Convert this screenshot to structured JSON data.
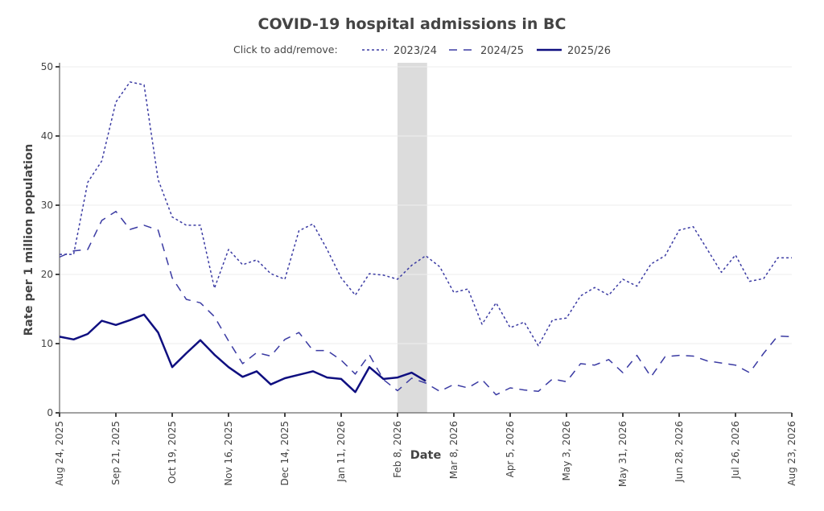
{
  "chart_data": {
    "type": "line",
    "title": "COVID-19 hospital admissions in BC",
    "xlabel": "Date",
    "ylabel": "Rate per 1 million population",
    "ylim": [
      0,
      50
    ],
    "yticks": [
      0,
      10,
      20,
      30,
      40,
      50
    ],
    "x_weeks": 53,
    "x_start": "Aug 24, 2025",
    "x_end": "Aug 23, 2026",
    "xtick_labels": [
      "Aug 24, 2025",
      "Sep 21, 2025",
      "Oct 19, 2025",
      "Nov 16, 2025",
      "Dec 14, 2025",
      "Jan 11, 2026",
      "Feb 8, 2026",
      "Mar 8, 2026",
      "Apr 5, 2026",
      "May 3, 2026",
      "May 31, 2026",
      "Jun 28, 2026",
      "Jul 26, 2026",
      "Aug 23, 2026"
    ],
    "xtick_weeks": [
      0,
      4,
      8,
      12,
      16,
      20,
      24,
      28,
      32,
      36,
      40,
      44,
      48,
      52
    ],
    "grid": true,
    "highlight_band": {
      "from_week": 24,
      "to_week": 26.1,
      "color": "#dcdcdc"
    },
    "legend": {
      "prefix": "Click to add/remove:",
      "placement": "top-center"
    },
    "series": [
      {
        "name": "2023/24",
        "style": "dotted",
        "color": "#3b3ba3",
        "values": [
          22.9,
          22.9,
          33.3,
          36.4,
          44.9,
          47.8,
          47.4,
          33.7,
          28.3,
          27.1,
          27.1,
          18.0,
          23.6,
          21.4,
          22.1,
          20.1,
          19.3,
          26.3,
          27.3,
          23.6,
          19.5,
          17.0,
          20.1,
          19.9,
          19.3,
          21.3,
          22.7,
          21.1,
          17.4,
          17.9,
          12.8,
          15.9,
          12.3,
          13.1,
          9.7,
          13.4,
          13.7,
          16.9,
          18.1,
          17.0,
          19.3,
          18.3,
          21.5,
          22.7,
          26.4,
          26.9,
          23.6,
          20.3,
          22.8,
          19.0,
          19.4,
          22.4,
          22.4
        ]
      },
      {
        "name": "2024/25",
        "style": "dashed",
        "color": "#3b3ba3",
        "values": [
          22.5,
          23.4,
          23.6,
          27.8,
          29.1,
          26.5,
          27.1,
          26.4,
          19.5,
          16.4,
          15.9,
          13.9,
          10.4,
          7.1,
          8.7,
          8.2,
          10.6,
          11.6,
          9.0,
          9.0,
          7.6,
          5.6,
          8.4,
          4.8,
          3.2,
          5.0,
          4.3,
          3.1,
          4.1,
          3.6,
          4.8,
          2.6,
          3.6,
          3.3,
          3.1,
          4.9,
          4.5,
          7.1,
          6.9,
          7.7,
          5.8,
          8.3,
          5.2,
          8.1,
          8.3,
          8.2,
          7.5,
          7.2,
          6.9,
          5.8,
          8.6,
          11.1,
          11.0
        ]
      },
      {
        "name": "2025/26",
        "style": "solid",
        "color": "#0f0f80",
        "values": [
          11.0,
          10.6,
          11.4,
          13.3,
          12.7,
          13.4,
          14.2,
          11.6,
          6.6,
          8.6,
          10.5,
          8.4,
          6.6,
          5.2,
          6.0,
          4.1,
          5.0,
          5.5,
          6.0,
          5.1,
          4.9,
          3.0,
          6.6,
          4.9,
          5.1,
          5.8,
          4.6
        ]
      }
    ]
  }
}
